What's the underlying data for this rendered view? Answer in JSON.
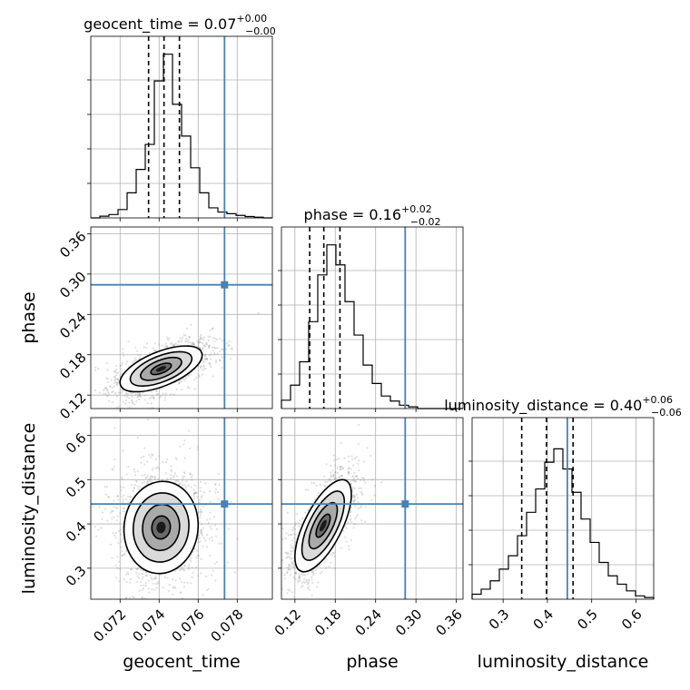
{
  "chart_data": {
    "type": "corner",
    "grid": true,
    "truth_color": "#4682b4",
    "parameters": [
      {
        "key": "geocent_time",
        "label": "geocent_time",
        "title_name": "geocent_time",
        "median": "0.07",
        "plus": "+0.00",
        "minus": "−0.00",
        "range": [
          0.0705,
          0.0798
        ],
        "ticks": [
          0.072,
          0.074,
          0.076,
          0.078
        ],
        "tick_labels": [
          "0.072",
          "0.074",
          "0.076",
          "0.078"
        ],
        "truth": 0.07735,
        "quantiles": [
          0.07346,
          0.07425,
          0.07504
        ]
      },
      {
        "key": "phase",
        "label": "phase",
        "title_name": "phase",
        "median": "0.16",
        "plus": "+0.02",
        "minus": "−0.02",
        "range": [
          0.1,
          0.37
        ],
        "ticks": [
          0.12,
          0.18,
          0.24,
          0.3,
          0.36
        ],
        "tick_labels": [
          "0.12",
          "0.18",
          "0.24",
          "0.30",
          "0.36"
        ],
        "truth": 0.284,
        "quantiles": [
          0.142,
          0.163,
          0.187
        ]
      },
      {
        "key": "luminosity_distance",
        "label": "luminosity_distance",
        "title_name": "luminosity_distance",
        "median": "0.40",
        "plus": "+0.06",
        "minus": "−0.06",
        "range": [
          0.23,
          0.64
        ],
        "ticks": [
          0.3,
          0.4,
          0.5,
          0.6
        ],
        "tick_labels": [
          "0.3",
          "0.4",
          "0.5",
          "0.6"
        ],
        "truth": 0.445,
        "quantiles": [
          0.342,
          0.398,
          0.458
        ]
      }
    ],
    "histograms": [
      [
        0,
        0.01,
        0.02,
        0.05,
        0.15,
        0.29,
        0.44,
        0.82,
        0.98,
        0.68,
        0.49,
        0.3,
        0.15,
        0.06,
        0.035,
        0.025,
        0.015,
        0.008,
        0.004,
        0
      ],
      [
        0.05,
        0.14,
        0.28,
        0.52,
        0.8,
        0.98,
        0.86,
        0.64,
        0.44,
        0.26,
        0.15,
        0.075,
        0.045,
        0.02,
        0.01,
        0,
        0,
        0,
        0,
        0
      ],
      [
        0.03,
        0.06,
        0.11,
        0.18,
        0.26,
        0.38,
        0.52,
        0.66,
        0.82,
        0.9,
        0.78,
        0.64,
        0.48,
        0.34,
        0.22,
        0.14,
        0.09,
        0.05,
        0.02,
        0.01
      ]
    ],
    "pairs": [
      {
        "x": 0,
        "y": 1,
        "center": [
          0.0741,
          0.159
        ],
        "sd": [
          0.00105,
          0.017
        ],
        "rho": 0.6
      },
      {
        "x": 0,
        "y": 2,
        "center": [
          0.0741,
          0.392
        ],
        "sd": [
          0.00095,
          0.052
        ],
        "rho": 0.05
      },
      {
        "x": 1,
        "y": 2,
        "center": [
          0.162,
          0.396
        ],
        "sd": [
          0.021,
          0.052
        ],
        "rho": 0.68
      }
    ],
    "contour_levels": [
      0.5,
      1.0,
      1.5,
      2.0
    ]
  }
}
